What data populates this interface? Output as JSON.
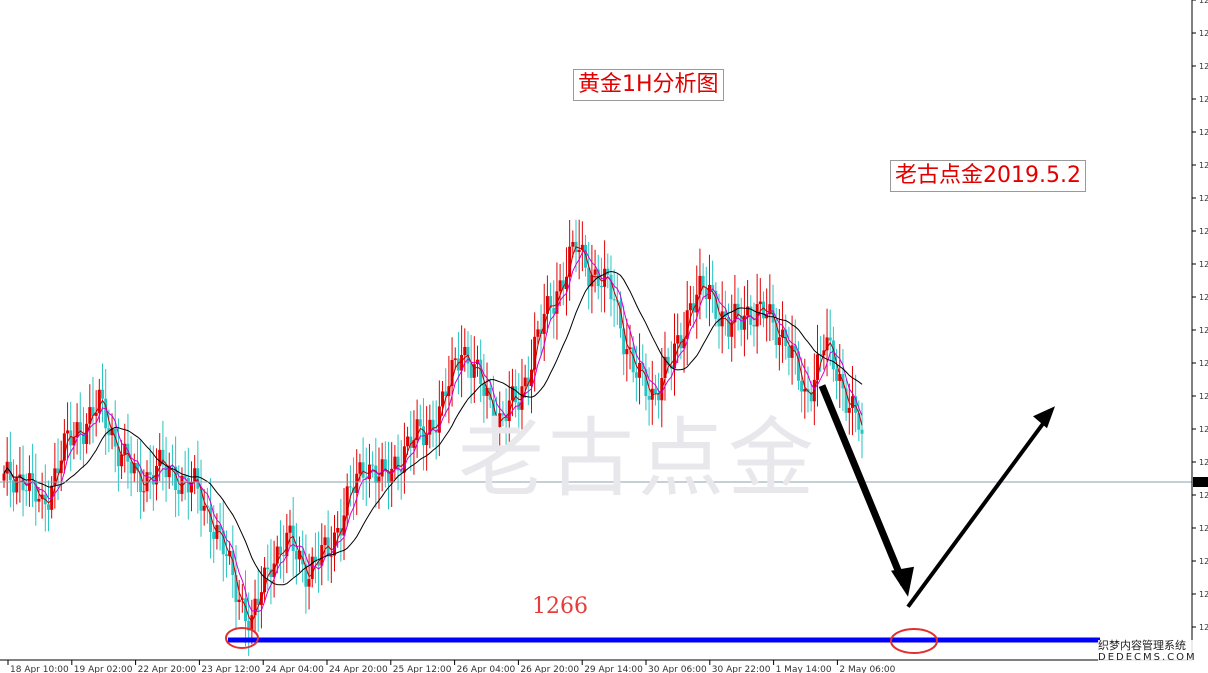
{
  "title": "黄金1H分析图",
  "author_label": "老古点金2019.5.2",
  "watermark": "老古点金",
  "site_watermark": {
    "line1": "织梦内容管理系统",
    "line2": "DEDECMS.COM"
  },
  "colors": {
    "up": "#e00000",
    "down": "#27c4c4",
    "ma_fast": "#c00000",
    "ma_mid": "#d000d0",
    "ma_slow": "#000000",
    "support": "#0000ff",
    "circle": "#e03030",
    "arrow": "#000000",
    "current_price_line": "#8aa2b2"
  },
  "chart_data": {
    "type": "candlestick",
    "title": "黄金1H分析图",
    "x_tick_labels": [
      "18 Apr 10:00",
      "19 Apr 02:00",
      "22 Apr 20:00",
      "23 Apr 12:00",
      "24 Apr 04:00",
      "24 Apr 20:00",
      "25 Apr 12:00",
      "26 Apr 04:00",
      "26 Apr 20:00",
      "29 Apr 14:00",
      "30 Apr 06:00",
      "30 Apr 22:00",
      "1 May 14:00",
      "2 May 06:00"
    ],
    "y_tick_labels": [
      "12",
      "12",
      "12",
      "12",
      "12",
      "12",
      "12",
      "12",
      "12",
      "12",
      "12",
      "12",
      "12",
      "12",
      "12",
      "12",
      "12",
      "12",
      "12",
      "12"
    ],
    "close_path": [
      1277.5,
      1278.0,
      1275.5,
      1279.5,
      1281.5,
      1283.0,
      1280.0,
      1277.5,
      1278.5,
      1278.0,
      1277.0,
      1274.5,
      1270.5,
      1267.0,
      1272.0,
      1273.0,
      1271.0,
      1272.5,
      1276.0,
      1279.0,
      1277.5,
      1280.0,
      1281.0,
      1283.0,
      1287.5,
      1284.5,
      1282.0,
      1283.5,
      1288.0,
      1291.5,
      1294.5,
      1292.5,
      1291.0,
      1285.5,
      1284.0,
      1286.0,
      1290.5,
      1291.5,
      1288.5,
      1290.0,
      1289.5,
      1288.0,
      1283.5,
      1287.5,
      1284.5,
      1281.0
    ],
    "ma_lines": [
      "fast",
      "mid",
      "slow"
    ],
    "horizontal_level": {
      "value": 1266,
      "label": "1266"
    },
    "current_price_line": 1278.0,
    "projection": [
      {
        "time_index": 0,
        "price": 1284.5
      },
      {
        "time_index": 1,
        "price": 1269.0
      },
      {
        "time_index": 2,
        "price": 1283.0
      }
    ]
  }
}
